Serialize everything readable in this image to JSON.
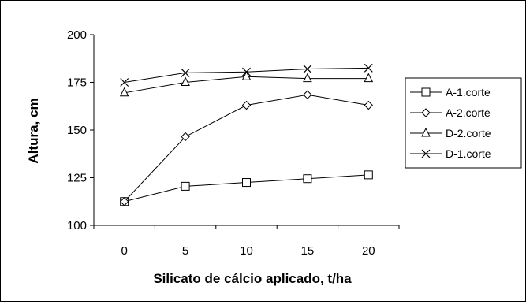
{
  "chart_data": {
    "type": "line",
    "title": "",
    "xlabel": "Silicato de cálcio aplicado, t/ha",
    "ylabel": "Altura, cm",
    "categories": [
      "0",
      "5",
      "10",
      "15",
      "20"
    ],
    "ylim": [
      100,
      200
    ],
    "yticks": [
      "100",
      "125",
      "150",
      "175",
      "200"
    ],
    "grid": false,
    "legend_position": "right",
    "series": [
      {
        "name": "A-1.corte",
        "marker": "square",
        "values": [
          112.5,
          120.5,
          122.5,
          124.5,
          126.5
        ]
      },
      {
        "name": "A-2.corte",
        "marker": "diamond",
        "values": [
          112.5,
          146.5,
          163,
          168.5,
          163
        ]
      },
      {
        "name": "D-2.corte",
        "marker": "triangle",
        "values": [
          169.5,
          175,
          178,
          177,
          177
        ]
      },
      {
        "name": "D-1.corte",
        "marker": "x",
        "values": [
          175,
          180,
          180.5,
          182,
          182.5
        ]
      }
    ]
  }
}
